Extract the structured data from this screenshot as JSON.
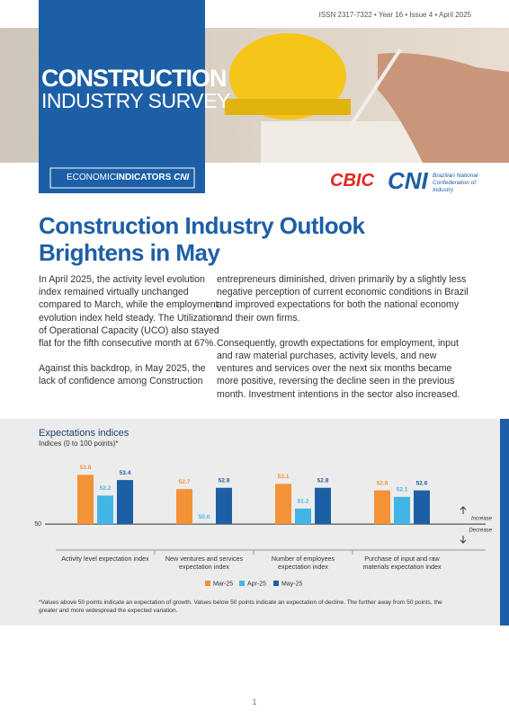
{
  "header": {
    "issn": "ISSN 2317-7322 • Year 16 • Issue 4 • April 2025",
    "title_line1": "CONSTRUCTION",
    "title_line2": "INDUSTRY SURVEY",
    "series_a": "ECONOMIC",
    "series_b": "INDICATORS",
    "series_logo": "CNI",
    "logo_cbic": "CBIC",
    "logo_cni": "CNI",
    "logo_cni_text": "Brazilian National Confederation of Industry"
  },
  "article": {
    "title": "Construction Industry Outlook Brightens in May",
    "left_column": [
      "In April 2025, the activity level evolution index remained virtually unchanged compared to March, while the employment evolution index held steady. The Utilization of Operational Capacity (UCO) also stayed flat for the fifth consecutive month at 67%.",
      "Against this backdrop, in May 2025, the lack of confidence among Construction"
    ],
    "right_column": [
      "entrepreneurs diminished, driven primarily by a slightly less negative perception of current economic conditions in Brazil and improved expectations for both the national economy and their own firms.",
      "Consequently, growth expectations for employment, input and raw material purchases, activity levels, and new ventures and services over the next six months became more positive, reversing the decline seen in the previous month. Investment intentions in the sector also increased."
    ]
  },
  "chart_data": {
    "type": "bar",
    "title": "Expectations indices",
    "subtitle": "Indices (0 to 100 points)*",
    "categories": [
      "Activity level expectation index",
      "New ventures and services expectation index",
      "Number of employees expectation index",
      "Purchase of input and raw materials expectation index"
    ],
    "series": [
      {
        "name": "Mar-25",
        "color": "#f39237",
        "values": [
          53.8,
          52.7,
          53.1,
          52.6
        ]
      },
      {
        "name": "Apr-25",
        "color": "#41b6e6",
        "values": [
          52.2,
          50.0,
          51.2,
          52.1
        ],
        "value_labels": [
          "52.2",
          "50.0",
          "51.2",
          "52.1"
        ]
      },
      {
        "name": "May-25",
        "color": "#1d5fa6",
        "values": [
          53.4,
          52.8,
          52.8,
          52.6
        ]
      }
    ],
    "ylim": [
      48,
      55
    ],
    "yticks": [
      50
    ],
    "above_label": "Increase",
    "below_label": "Decrease",
    "footnote": "*Values above 50 points indicate an expectation of growth. Values below 50 points indicate an expectation of decline. The further away from 50 points, the greater and more widespread the expected variation."
  },
  "page_number": "1"
}
